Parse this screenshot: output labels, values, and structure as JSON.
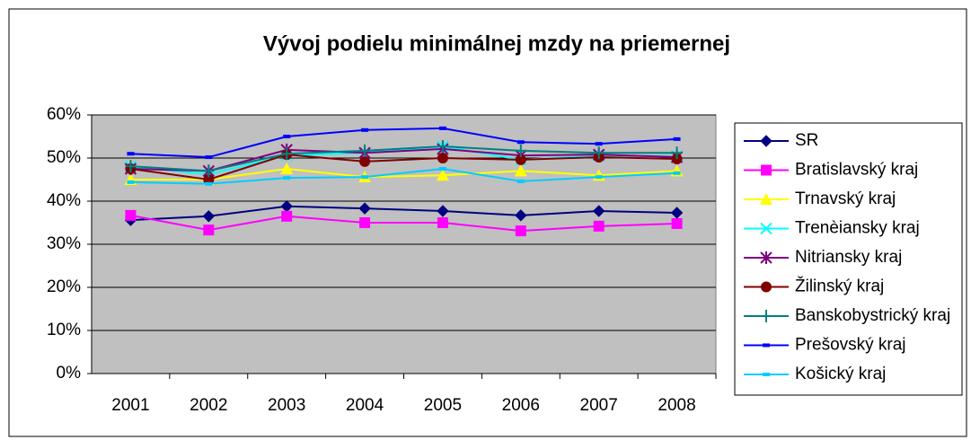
{
  "chart_data": {
    "type": "line",
    "title": "Vývoj podielu minimálnej mzdy na priemernej",
    "categories": [
      "2001",
      "2002",
      "2003",
      "2004",
      "2005",
      "2006",
      "2007",
      "2008"
    ],
    "series": [
      {
        "name": "SR",
        "color": "#000080",
        "marker": "diamond",
        "values": [
          35.6,
          36.5,
          38.8,
          38.3,
          37.7,
          36.7,
          37.7,
          37.3
        ]
      },
      {
        "name": "Bratislavský kraj",
        "color": "#ff00ff",
        "marker": "square",
        "values": [
          36.7,
          33.3,
          36.5,
          35,
          35,
          33.1,
          34.2,
          34.8
        ]
      },
      {
        "name": "Trnavský kraj",
        "color": "#ffff00",
        "marker": "triangle",
        "values": [
          45,
          45,
          47.5,
          45.6,
          46,
          47,
          46,
          47
        ]
      },
      {
        "name": "Trenèiansky kraj",
        "color": "#00ffff",
        "marker": "x",
        "values": [
          48,
          46.2,
          50.6,
          51.2,
          52.7,
          49.6,
          50.6,
          50.4
        ]
      },
      {
        "name": "Nitriansky kraj",
        "color": "#800080",
        "marker": "star",
        "values": [
          47.5,
          47,
          51.9,
          51.2,
          52.1,
          50.6,
          50.8,
          50.2
        ]
      },
      {
        "name": "Žilinský kraj",
        "color": "#800000",
        "marker": "circle",
        "values": [
          47.5,
          45,
          50.8,
          49.2,
          50,
          49.6,
          50.2,
          49.8
        ]
      },
      {
        "name": "Banskobystrický kraj",
        "color": "#008080",
        "marker": "plus",
        "values": [
          48.1,
          47,
          51,
          51.7,
          52.7,
          51.7,
          51.2,
          51.2
        ]
      },
      {
        "name": "Prešovský kraj",
        "color": "#0000ff",
        "marker": "dash",
        "values": [
          51,
          50.2,
          55,
          56.5,
          56.9,
          53.7,
          53.3,
          54.4
        ]
      },
      {
        "name": "Košický kraj",
        "color": "#00ccff",
        "marker": "dash",
        "values": [
          44.4,
          44,
          45.4,
          45.6,
          47.5,
          44.6,
          45.6,
          46.5
        ]
      }
    ],
    "ylim": [
      0,
      60
    ],
    "yticks": [
      {
        "value": 0,
        "label": "0%"
      },
      {
        "value": 10,
        "label": "10%"
      },
      {
        "value": 20,
        "label": "20%"
      },
      {
        "value": 30,
        "label": "30%"
      },
      {
        "value": 40,
        "label": "40%"
      },
      {
        "value": 50,
        "label": "50%"
      },
      {
        "value": 60,
        "label": "60%"
      }
    ],
    "grid": true,
    "legend": "right"
  }
}
